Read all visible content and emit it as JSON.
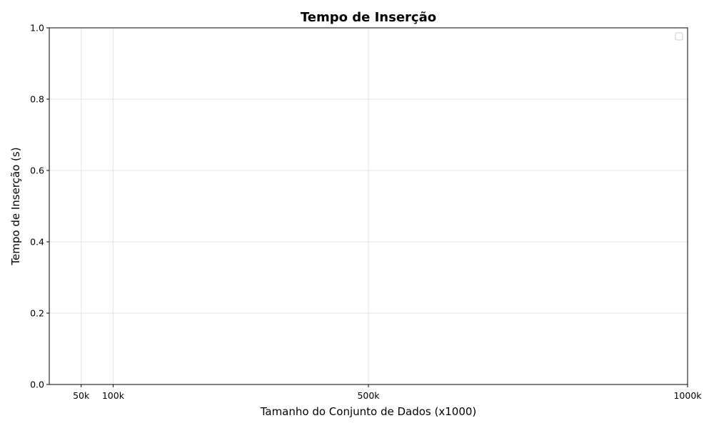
{
  "chart_data": {
    "type": "line",
    "title": "Tempo de Inserção",
    "xlabel": "Tamanho do Conjunto de Dados (x1000)",
    "ylabel": "Tempo de Inserção (s)",
    "xlim": [
      0,
      1000
    ],
    "ylim": [
      0,
      1
    ],
    "x_ticks": [
      {
        "value": 50,
        "label": "50k"
      },
      {
        "value": 100,
        "label": "100k"
      },
      {
        "value": 500,
        "label": "500k"
      },
      {
        "value": 1000,
        "label": "1000k"
      }
    ],
    "y_ticks": [
      {
        "value": 0.0,
        "label": "0.0"
      },
      {
        "value": 0.2,
        "label": "0.2"
      },
      {
        "value": 0.4,
        "label": "0.4"
      },
      {
        "value": 0.6,
        "label": "0.6"
      },
      {
        "value": 0.8,
        "label": "0.8"
      },
      {
        "value": 1.0,
        "label": "1.0"
      }
    ],
    "grid": true,
    "legend": {
      "placement": "top-right",
      "entries": []
    },
    "series": []
  }
}
